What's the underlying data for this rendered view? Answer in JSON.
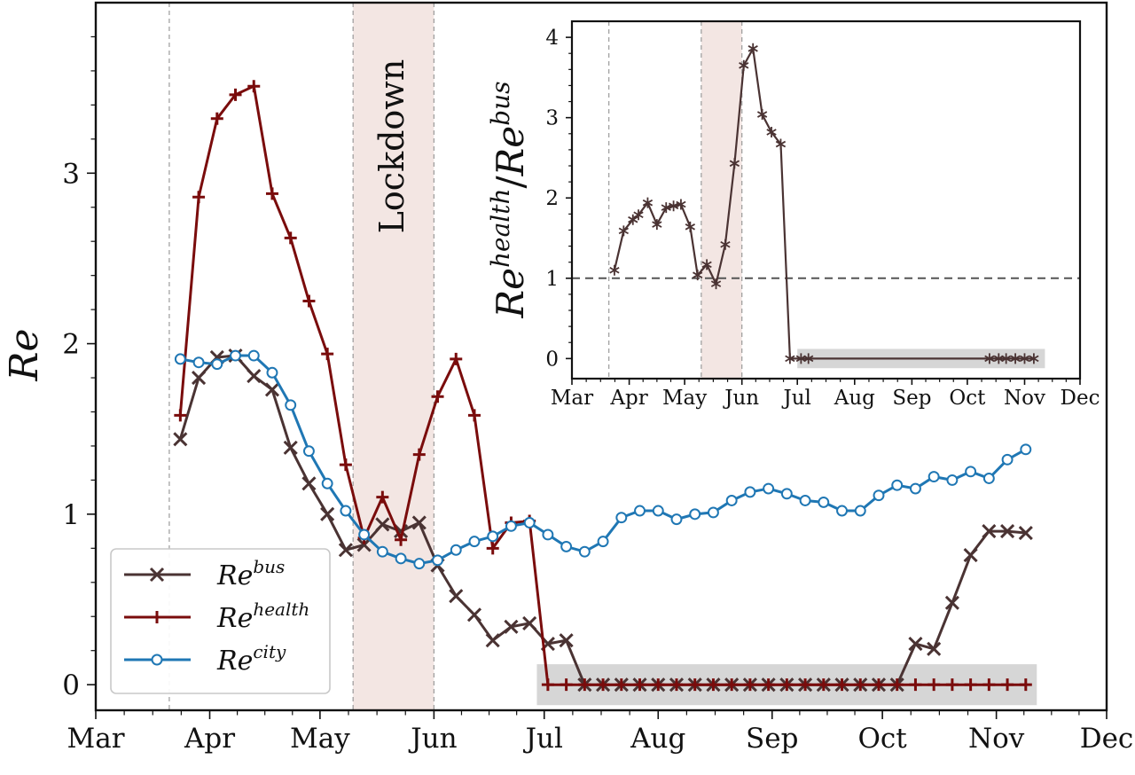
{
  "chart_data": [
    {
      "type": "line",
      "ylabel": "Re",
      "xlim": [
        "2020-03-01",
        "2020-12-01"
      ],
      "ylim": [
        -0.15,
        4.0
      ],
      "x_ticks": [
        "Mar",
        "Apr",
        "May",
        "Jun",
        "Jul",
        "Aug",
        "Sep",
        "Oct",
        "Nov",
        "Dec"
      ],
      "y_ticks": [
        "0",
        "1",
        "2",
        "3"
      ],
      "vertical_dashed_lines": [
        "2020-03-21",
        "2020-05-10",
        "2020-06-01"
      ],
      "shaded_regions": [
        {
          "label": "Lockdown",
          "start": "2020-05-10",
          "end": "2020-06-01",
          "color": "#f3e6e3"
        },
        {
          "label": "",
          "start": "2020-06-29",
          "end": "2020-11-12",
          "y_range": [
            -0.12,
            0.12
          ],
          "color": "#d6d6d6"
        }
      ],
      "legend": {
        "position": "bottom-left",
        "entries": [
          {
            "base": "Re",
            "sup": "bus",
            "marker": "x",
            "color": "#4a3333"
          },
          {
            "base": "Re",
            "sup": "health",
            "marker": "+",
            "color": "#7a0c0c"
          },
          {
            "base": "Re",
            "sup": "city",
            "marker": "o",
            "color": "#1f77b4"
          }
        ]
      },
      "series": [
        {
          "key": "bus",
          "color": "#4a3333",
          "marker": "x",
          "x": [
            "2020-03-24",
            "2020-03-29",
            "2020-04-03",
            "2020-04-08",
            "2020-04-13",
            "2020-04-18",
            "2020-04-23",
            "2020-04-28",
            "2020-05-03",
            "2020-05-08",
            "2020-05-13",
            "2020-05-18",
            "2020-05-23",
            "2020-05-28",
            "2020-06-02",
            "2020-06-07",
            "2020-06-12",
            "2020-06-17",
            "2020-06-22",
            "2020-06-27",
            "2020-07-02",
            "2020-07-07",
            "2020-07-12",
            "2020-07-17",
            "2020-07-22",
            "2020-07-27",
            "2020-08-01",
            "2020-08-06",
            "2020-08-11",
            "2020-08-16",
            "2020-08-21",
            "2020-08-26",
            "2020-08-31",
            "2020-09-05",
            "2020-09-10",
            "2020-09-15",
            "2020-09-20",
            "2020-09-25",
            "2020-09-30",
            "2020-10-05",
            "2020-10-10",
            "2020-10-15",
            "2020-10-20",
            "2020-10-25",
            "2020-10-30",
            "2020-11-04",
            "2020-11-09"
          ],
          "y": [
            1.44,
            1.8,
            1.92,
            1.93,
            1.81,
            1.73,
            1.39,
            1.18,
            1.0,
            0.79,
            0.82,
            0.94,
            0.9,
            0.95,
            0.7,
            0.52,
            0.41,
            0.26,
            0.34,
            0.36,
            0.24,
            0.26,
            0,
            0,
            0,
            0,
            0,
            0,
            0,
            0,
            0,
            0,
            0,
            0,
            0,
            0,
            0,
            0,
            0,
            0,
            0.24,
            0.21,
            0.48,
            0.76,
            0.9,
            0.9,
            0.89
          ]
        },
        {
          "key": "health",
          "color": "#7a0c0c",
          "marker": "+",
          "x": [
            "2020-03-24",
            "2020-03-29",
            "2020-04-03",
            "2020-04-08",
            "2020-04-13",
            "2020-04-18",
            "2020-04-23",
            "2020-04-28",
            "2020-05-03",
            "2020-05-08",
            "2020-05-13",
            "2020-05-18",
            "2020-05-23",
            "2020-05-28",
            "2020-06-02",
            "2020-06-07",
            "2020-06-12",
            "2020-06-17",
            "2020-06-22",
            "2020-06-27",
            "2020-07-02",
            "2020-07-07",
            "2020-07-12",
            "2020-07-17",
            "2020-07-22",
            "2020-07-27",
            "2020-08-01",
            "2020-08-06",
            "2020-08-11",
            "2020-08-16",
            "2020-08-21",
            "2020-08-26",
            "2020-08-31",
            "2020-09-05",
            "2020-09-10",
            "2020-09-15",
            "2020-09-20",
            "2020-09-25",
            "2020-09-30",
            "2020-10-05",
            "2020-10-10",
            "2020-10-15",
            "2020-10-20",
            "2020-10-25",
            "2020-10-30",
            "2020-11-04",
            "2020-11-09"
          ],
          "y": [
            1.58,
            2.86,
            3.32,
            3.46,
            3.51,
            2.88,
            2.62,
            2.25,
            1.94,
            1.29,
            0.86,
            1.1,
            0.85,
            1.35,
            1.69,
            1.91,
            1.58,
            0.8,
            0.95,
            0.96,
            0,
            0,
            0,
            0,
            0,
            0,
            0,
            0,
            0,
            0,
            0,
            0,
            0,
            0,
            0,
            0,
            0,
            0,
            0,
            0,
            0,
            0,
            0,
            0,
            0,
            0,
            0
          ]
        },
        {
          "key": "city",
          "color": "#1f77b4",
          "marker": "o",
          "x": [
            "2020-03-24",
            "2020-03-29",
            "2020-04-03",
            "2020-04-08",
            "2020-04-13",
            "2020-04-18",
            "2020-04-23",
            "2020-04-28",
            "2020-05-03",
            "2020-05-08",
            "2020-05-13",
            "2020-05-18",
            "2020-05-23",
            "2020-05-28",
            "2020-06-02",
            "2020-06-07",
            "2020-06-12",
            "2020-06-17",
            "2020-06-22",
            "2020-06-27",
            "2020-07-02",
            "2020-07-07",
            "2020-07-12",
            "2020-07-17",
            "2020-07-22",
            "2020-07-27",
            "2020-08-01",
            "2020-08-06",
            "2020-08-11",
            "2020-08-16",
            "2020-08-21",
            "2020-08-26",
            "2020-08-31",
            "2020-09-05",
            "2020-09-10",
            "2020-09-15",
            "2020-09-20",
            "2020-09-25",
            "2020-09-30",
            "2020-10-05",
            "2020-10-10",
            "2020-10-15",
            "2020-10-20",
            "2020-10-25",
            "2020-10-30",
            "2020-11-04",
            "2020-11-09"
          ],
          "y": [
            1.91,
            1.89,
            1.88,
            1.93,
            1.93,
            1.83,
            1.64,
            1.37,
            1.18,
            1.02,
            0.88,
            0.78,
            0.74,
            0.71,
            0.73,
            0.79,
            0.84,
            0.87,
            0.93,
            0.95,
            0.88,
            0.81,
            0.78,
            0.84,
            0.98,
            1.02,
            1.02,
            0.97,
            1.0,
            1.01,
            1.08,
            1.13,
            1.15,
            1.12,
            1.08,
            1.07,
            1.02,
            1.02,
            1.11,
            1.17,
            1.15,
            1.22,
            1.2,
            1.25,
            1.21,
            1.32,
            1.38
          ]
        }
      ],
      "annotations": [
        "Lockdown"
      ]
    },
    {
      "type": "line",
      "ylabel_base": "Re",
      "ylabel_num_sup": "health",
      "ylabel_den_sup": "bus",
      "ylabel_sep": "/",
      "xlim": [
        "2020-03-01",
        "2020-12-01"
      ],
      "ylim": [
        -0.25,
        4.2
      ],
      "x_ticks": [
        "Mar",
        "Apr",
        "May",
        "Jun",
        "Jul",
        "Aug",
        "Sep",
        "Oct",
        "Nov",
        "Dec"
      ],
      "y_ticks": [
        "0",
        "1",
        "2",
        "3",
        "4"
      ],
      "reference_line": {
        "y": 1,
        "style": "dashed"
      },
      "vertical_dashed_lines": [
        "2020-03-21",
        "2020-05-10",
        "2020-06-01"
      ],
      "shaded_regions": [
        {
          "start": "2020-05-10",
          "end": "2020-06-01",
          "color": "#f3e6e3"
        },
        {
          "start": "2020-07-01",
          "end": "2020-11-12",
          "y_range": [
            -0.12,
            0.12
          ],
          "color": "#d6d6d6"
        }
      ],
      "series": [
        {
          "key": "ratio",
          "color": "#4a3333",
          "marker": "*",
          "x": [
            "2020-03-24",
            "2020-03-29",
            "2020-04-03",
            "2020-04-06",
            "2020-04-11",
            "2020-04-16",
            "2020-04-21",
            "2020-04-25",
            "2020-04-29",
            "2020-05-04",
            "2020-05-08",
            "2020-05-13",
            "2020-05-18",
            "2020-05-23",
            "2020-05-28",
            "2020-06-02",
            "2020-06-07",
            "2020-06-12",
            "2020-06-17",
            "2020-06-22",
            "2020-06-27",
            "2020-07-03",
            "2020-07-07",
            "2020-10-13",
            "2020-10-18",
            "2020-10-22",
            "2020-10-27",
            "2020-11-01",
            "2020-11-06"
          ],
          "y": [
            1.1,
            1.59,
            1.73,
            1.79,
            1.94,
            1.67,
            1.88,
            1.9,
            1.92,
            1.64,
            1.04,
            1.17,
            0.93,
            1.42,
            2.43,
            3.65,
            3.86,
            3.04,
            2.82,
            2.67,
            0,
            0,
            0,
            0,
            0,
            0,
            0,
            0,
            0
          ]
        }
      ]
    }
  ]
}
